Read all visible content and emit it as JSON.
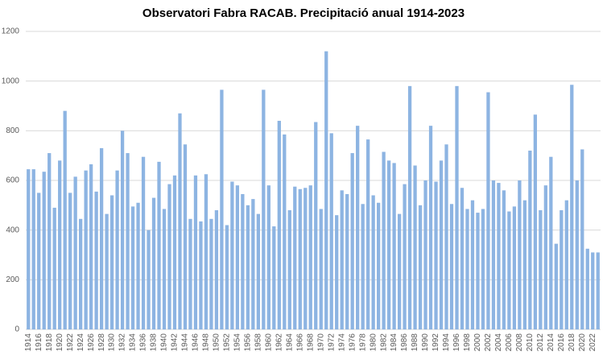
{
  "chart_data": {
    "type": "bar",
    "title": "Observatori  Fabra RACAB.  Precipitació  anual 1914-2023",
    "categories": [
      "1914",
      null,
      "1916",
      null,
      "1918",
      null,
      "1920",
      null,
      "1922",
      null,
      "1924",
      null,
      "1926",
      null,
      "1928",
      null,
      "1930",
      null,
      "1932",
      null,
      "1934",
      null,
      "1936",
      null,
      "1938",
      null,
      "1940",
      null,
      "1942",
      null,
      "1944",
      null,
      "1946",
      null,
      "1948",
      null,
      "1950",
      null,
      "1952",
      null,
      "1954",
      null,
      "1956",
      null,
      "1958",
      null,
      "1960",
      null,
      "1962",
      null,
      "1964",
      null,
      "1966",
      null,
      "1968",
      null,
      "1970",
      null,
      "1972",
      null,
      "1974",
      null,
      "1976",
      null,
      "1978",
      null,
      "1980",
      null,
      "1982",
      null,
      "1984",
      null,
      "1986",
      null,
      "1988",
      null,
      "1990",
      null,
      "1992",
      null,
      "1994",
      null,
      "1996",
      null,
      "1998",
      null,
      "2000",
      null,
      "2002",
      null,
      "2004",
      null,
      "2006",
      null,
      "2008",
      null,
      "2010",
      null,
      "2012",
      null,
      "2014",
      null,
      "2016",
      null,
      "2018",
      null,
      "2020",
      null,
      "2022",
      null
    ],
    "values": [
      645,
      645,
      550,
      635,
      710,
      490,
      680,
      880,
      550,
      615,
      445,
      640,
      665,
      555,
      730,
      465,
      540,
      640,
      800,
      710,
      495,
      510,
      695,
      400,
      530,
      675,
      485,
      585,
      620,
      870,
      745,
      445,
      620,
      435,
      625,
      445,
      480,
      965,
      420,
      595,
      580,
      545,
      500,
      525,
      465,
      965,
      580,
      415,
      840,
      785,
      480,
      575,
      565,
      570,
      580,
      835,
      485,
      1120,
      790,
      460,
      560,
      545,
      710,
      820,
      505,
      765,
      540,
      510,
      715,
      680,
      670,
      465,
      585,
      980,
      660,
      500,
      600,
      820,
      595,
      680,
      745,
      505,
      980,
      570,
      485,
      520,
      470,
      485,
      955,
      600,
      590,
      560,
      475,
      495,
      600,
      520,
      720,
      865,
      480,
      580,
      695,
      345,
      480,
      520,
      985,
      600,
      725,
      325,
      310,
      310
    ],
    "color": "#8db4e2",
    "ylim": [
      0,
      1200
    ],
    "yticks": [
      0,
      200,
      400,
      600,
      800,
      1000,
      1200
    ],
    "grid": true
  }
}
